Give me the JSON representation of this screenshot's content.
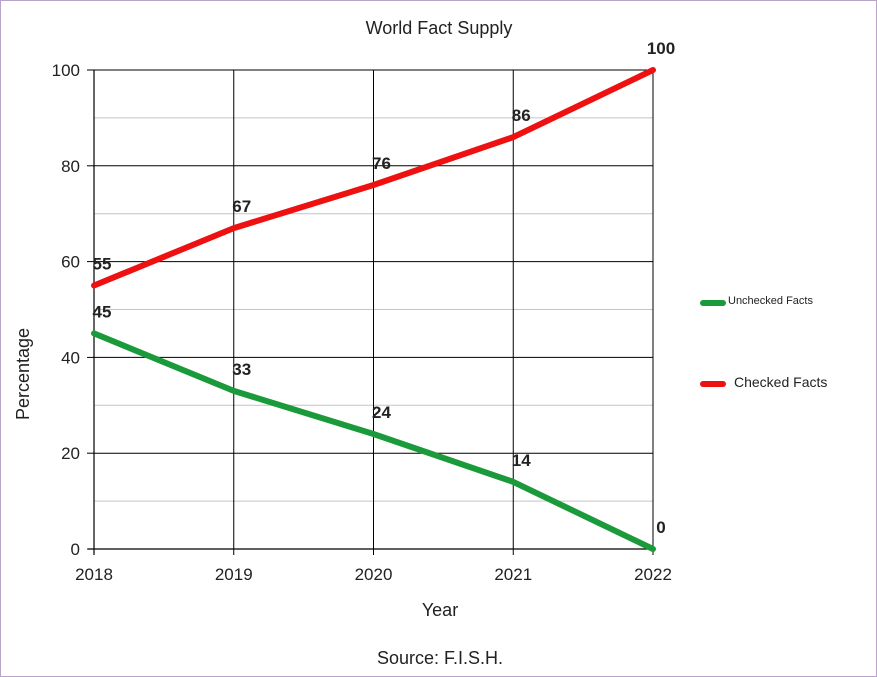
{
  "chart_data": {
    "type": "line",
    "title": "World Fact Supply",
    "xlabel": "Year",
    "ylabel": "Percentage",
    "source": "Source: F.I.S.H.",
    "x": [
      "2018",
      "2019",
      "2020",
      "2021",
      "2022"
    ],
    "ylim": [
      0,
      100
    ],
    "yticks": [
      0,
      20,
      40,
      60,
      80,
      100
    ],
    "grid": true,
    "legend_position": "right",
    "series": [
      {
        "name": "Unchecked Facts",
        "color": "#1a9a3a",
        "values": [
          45,
          33,
          24,
          14,
          0
        ]
      },
      {
        "name": "Checked Facts",
        "color": "#ee1111",
        "values": [
          55,
          67,
          76,
          86,
          100
        ]
      }
    ]
  }
}
